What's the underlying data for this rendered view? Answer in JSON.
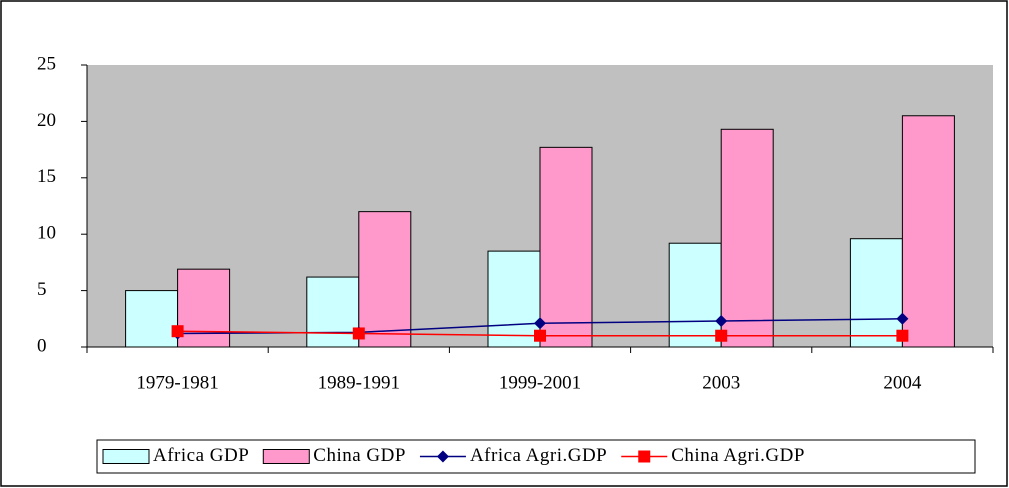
{
  "chart_data": {
    "type": "bar",
    "categories": [
      "1979-1981",
      "1989-1991",
      "1999-2001",
      "2003",
      "2004"
    ],
    "series": [
      {
        "name": "Africa GDP",
        "type": "bar",
        "color": "#ccffff",
        "values": [
          5,
          6.2,
          8.5,
          9.2,
          9.6
        ]
      },
      {
        "name": "China GDP",
        "type": "bar",
        "color": "#ff99cc",
        "values": [
          6.9,
          12,
          17.7,
          19.3,
          20.5
        ]
      },
      {
        "name": "Africa Agri.GDP",
        "type": "line",
        "marker": "diamond",
        "color": "#000080",
        "values": [
          1.2,
          1.3,
          2.1,
          2.3,
          2.5
        ]
      },
      {
        "name": "China Agri.GDP",
        "type": "line",
        "marker": "square",
        "color": "#ff0000",
        "values": [
          1.4,
          1.2,
          1.0,
          1.0,
          1.0
        ]
      }
    ],
    "ylim": [
      0,
      25
    ],
    "yticks": [
      0,
      5,
      10,
      15,
      20,
      25
    ],
    "plot_background": "#c0c0c0",
    "legend": "bottom"
  }
}
